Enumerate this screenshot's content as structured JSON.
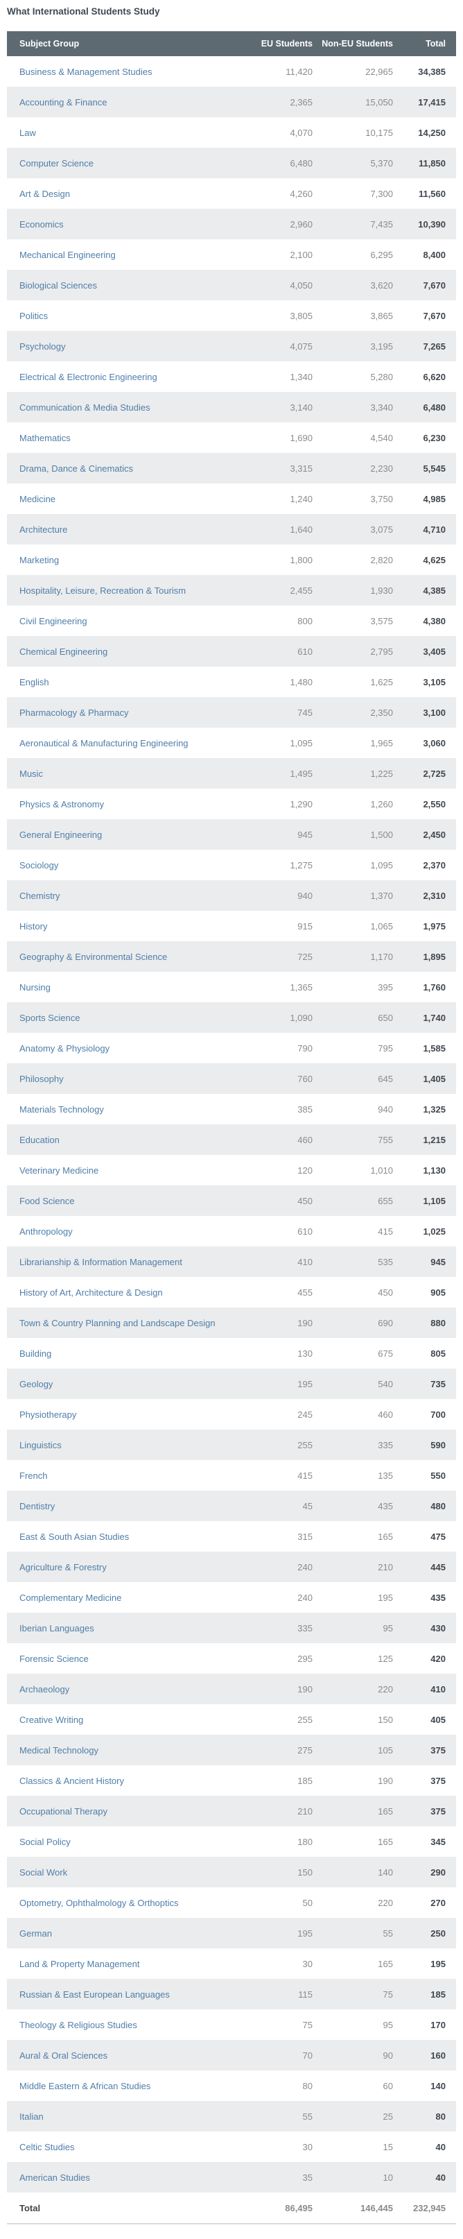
{
  "page_title": "What International Students Study",
  "chart_data": {
    "type": "table",
    "title": "What International Students Study",
    "columns": [
      "Subject Group",
      "EU Students",
      "Non-EU Students",
      "Total"
    ],
    "rows": [
      [
        "Business & Management Studies",
        "11,420",
        "22,965",
        "34,385"
      ],
      [
        "Accounting & Finance",
        "2,365",
        "15,050",
        "17,415"
      ],
      [
        "Law",
        "4,070",
        "10,175",
        "14,250"
      ],
      [
        "Computer Science",
        "6,480",
        "5,370",
        "11,850"
      ],
      [
        "Art & Design",
        "4,260",
        "7,300",
        "11,560"
      ],
      [
        "Economics",
        "2,960",
        "7,435",
        "10,390"
      ],
      [
        "Mechanical Engineering",
        "2,100",
        "6,295",
        "8,400"
      ],
      [
        "Biological Sciences",
        "4,050",
        "3,620",
        "7,670"
      ],
      [
        "Politics",
        "3,805",
        "3,865",
        "7,670"
      ],
      [
        "Psychology",
        "4,075",
        "3,195",
        "7,265"
      ],
      [
        "Electrical & Electronic Engineering",
        "1,340",
        "5,280",
        "6,620"
      ],
      [
        "Communication & Media Studies",
        "3,140",
        "3,340",
        "6,480"
      ],
      [
        "Mathematics",
        "1,690",
        "4,540",
        "6,230"
      ],
      [
        "Drama, Dance & Cinematics",
        "3,315",
        "2,230",
        "5,545"
      ],
      [
        "Medicine",
        "1,240",
        "3,750",
        "4,985"
      ],
      [
        "Architecture",
        "1,640",
        "3,075",
        "4,710"
      ],
      [
        "Marketing",
        "1,800",
        "2,820",
        "4,625"
      ],
      [
        "Hospitality, Leisure, Recreation & Tourism",
        "2,455",
        "1,930",
        "4,385"
      ],
      [
        "Civil Engineering",
        "800",
        "3,575",
        "4,380"
      ],
      [
        "Chemical Engineering",
        "610",
        "2,795",
        "3,405"
      ],
      [
        "English",
        "1,480",
        "1,625",
        "3,105"
      ],
      [
        "Pharmacology & Pharmacy",
        "745",
        "2,350",
        "3,100"
      ],
      [
        "Aeronautical & Manufacturing Engineering",
        "1,095",
        "1,965",
        "3,060"
      ],
      [
        "Music",
        "1,495",
        "1,225",
        "2,725"
      ],
      [
        "Physics & Astronomy",
        "1,290",
        "1,260",
        "2,550"
      ],
      [
        "General Engineering",
        "945",
        "1,500",
        "2,450"
      ],
      [
        "Sociology",
        "1,275",
        "1,095",
        "2,370"
      ],
      [
        "Chemistry",
        "940",
        "1,370",
        "2,310"
      ],
      [
        "History",
        "915",
        "1,065",
        "1,975"
      ],
      [
        "Geography & Environmental Science",
        "725",
        "1,170",
        "1,895"
      ],
      [
        "Nursing",
        "1,365",
        "395",
        "1,760"
      ],
      [
        "Sports Science",
        "1,090",
        "650",
        "1,740"
      ],
      [
        "Anatomy & Physiology",
        "790",
        "795",
        "1,585"
      ],
      [
        "Philosophy",
        "760",
        "645",
        "1,405"
      ],
      [
        "Materials Technology",
        "385",
        "940",
        "1,325"
      ],
      [
        "Education",
        "460",
        "755",
        "1,215"
      ],
      [
        "Veterinary Medicine",
        "120",
        "1,010",
        "1,130"
      ],
      [
        "Food Science",
        "450",
        "655",
        "1,105"
      ],
      [
        "Anthropology",
        "610",
        "415",
        "1,025"
      ],
      [
        "Librarianship & Information Management",
        "410",
        "535",
        "945"
      ],
      [
        "History of Art, Architecture & Design",
        "455",
        "450",
        "905"
      ],
      [
        "Town & Country Planning and Landscape Design",
        "190",
        "690",
        "880"
      ],
      [
        "Building",
        "130",
        "675",
        "805"
      ],
      [
        "Geology",
        "195",
        "540",
        "735"
      ],
      [
        "Physiotherapy",
        "245",
        "460",
        "700"
      ],
      [
        "Linguistics",
        "255",
        "335",
        "590"
      ],
      [
        "French",
        "415",
        "135",
        "550"
      ],
      [
        "Dentistry",
        "45",
        "435",
        "480"
      ],
      [
        "East & South Asian Studies",
        "315",
        "165",
        "475"
      ],
      [
        "Agriculture & Forestry",
        "240",
        "210",
        "445"
      ],
      [
        "Complementary Medicine",
        "240",
        "195",
        "435"
      ],
      [
        "Iberian Languages",
        "335",
        "95",
        "430"
      ],
      [
        "Forensic Science",
        "295",
        "125",
        "420"
      ],
      [
        "Archaeology",
        "190",
        "220",
        "410"
      ],
      [
        "Creative Writing",
        "255",
        "150",
        "405"
      ],
      [
        "Medical Technology",
        "275",
        "105",
        "375"
      ],
      [
        "Classics & Ancient History",
        "185",
        "190",
        "375"
      ],
      [
        "Occupational Therapy",
        "210",
        "165",
        "375"
      ],
      [
        "Social Policy",
        "180",
        "165",
        "345"
      ],
      [
        "Social Work",
        "150",
        "140",
        "290"
      ],
      [
        "Optometry, Ophthalmology & Orthoptics",
        "50",
        "220",
        "270"
      ],
      [
        "German",
        "195",
        "55",
        "250"
      ],
      [
        "Land & Property Management",
        "30",
        "165",
        "195"
      ],
      [
        "Russian & East European Languages",
        "115",
        "75",
        "185"
      ],
      [
        "Theology & Religious Studies",
        "75",
        "95",
        "170"
      ],
      [
        "Aural & Oral Sciences",
        "70",
        "90",
        "160"
      ],
      [
        "Middle Eastern & African Studies",
        "80",
        "60",
        "140"
      ],
      [
        "Italian",
        "55",
        "25",
        "80"
      ],
      [
        "Celtic Studies",
        "30",
        "15",
        "40"
      ],
      [
        "American Studies",
        "35",
        "10",
        "40"
      ]
    ],
    "total_row": [
      "Total",
      "86,495",
      "146,445",
      "232,945"
    ],
    "layout": {
      "legend": "none",
      "grid": "row-stripes",
      "numeric_alignment": "right"
    }
  },
  "colors": {
    "header_bg": "#5e6a72",
    "header_text": "#ffffff",
    "row_alt_bg": "#ebeced",
    "link": "#4f7ea9",
    "number": "#888c90",
    "total_text": "#41474e",
    "title": "#3e4a55"
  }
}
